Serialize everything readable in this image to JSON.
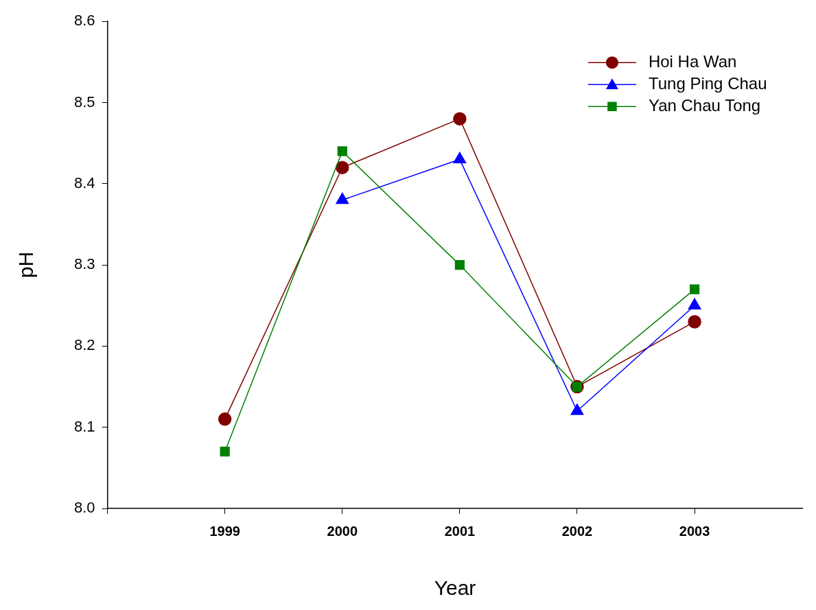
{
  "chart_data": {
    "type": "line",
    "xlabel": "Year",
    "ylabel": "pH",
    "x": [
      1999,
      2000,
      2001,
      2002,
      2003
    ],
    "xlim": [
      1998,
      2003.92
    ],
    "xticks": [
      {
        "value": 1998,
        "label": null
      },
      1999,
      2000,
      2001,
      2002,
      2003
    ],
    "ylim": [
      8.0,
      8.6
    ],
    "yticks": [
      {
        "value": 8,
        "label": "8.0"
      },
      8.1,
      8.2,
      8.3,
      8.4,
      8.5,
      8.6
    ],
    "grid": false,
    "legend": "top right",
    "line_style": "solid",
    "series": [
      {
        "name": "Hoi Ha Wan",
        "color": "#800000",
        "marker": "circle",
        "values": [
          8.11,
          8.42,
          8.48,
          8.15,
          8.23
        ]
      },
      {
        "name": "Tung Ping Chau",
        "color": "#0000ff",
        "marker": "triangle",
        "values": [
          null,
          8.38,
          8.43,
          8.12,
          8.25
        ]
      },
      {
        "name": "Yan Chau Tong",
        "color": "#008000",
        "marker": "square",
        "values": [
          8.07,
          8.44,
          8.3,
          8.15,
          8.27
        ]
      }
    ]
  }
}
